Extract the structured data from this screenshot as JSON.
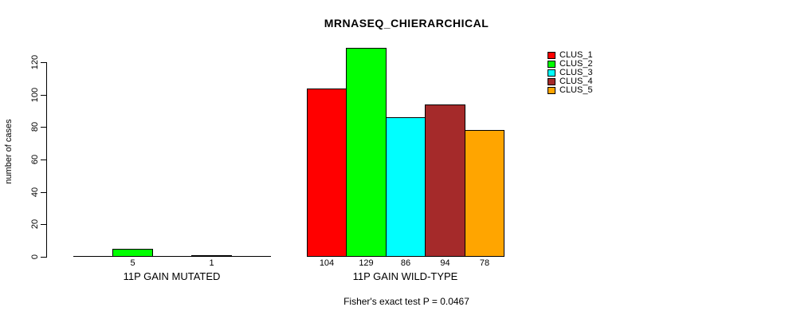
{
  "chart_data": {
    "type": "bar",
    "title": "MRNASEQ_CHIERARCHICAL",
    "subtitle": "Fisher's exact test P = 0.0467",
    "ylabel": "number of cases",
    "xlabel": "",
    "ylim": [
      0,
      120
    ],
    "yticks": [
      0,
      20,
      40,
      60,
      80,
      100,
      120
    ],
    "grid": false,
    "legend_position": "top-right",
    "series": [
      {
        "name": "CLUS_1",
        "color": "#FF0000"
      },
      {
        "name": "CLUS_2",
        "color": "#00FF00"
      },
      {
        "name": "CLUS_3",
        "color": "#00FFFF"
      },
      {
        "name": "CLUS_4",
        "color": "#A52A2A"
      },
      {
        "name": "CLUS_5",
        "color": "#FFA500"
      }
    ],
    "groups": [
      {
        "label": "11P GAIN MUTATED",
        "values": [
          0,
          5,
          0,
          1,
          0
        ],
        "bar_labels": [
          "",
          "5",
          "",
          "1",
          ""
        ]
      },
      {
        "label": "11P GAIN WILD-TYPE",
        "values": [
          104,
          129,
          86,
          94,
          78
        ],
        "bar_labels": [
          "104",
          "129",
          "86",
          "94",
          "78"
        ]
      }
    ]
  }
}
